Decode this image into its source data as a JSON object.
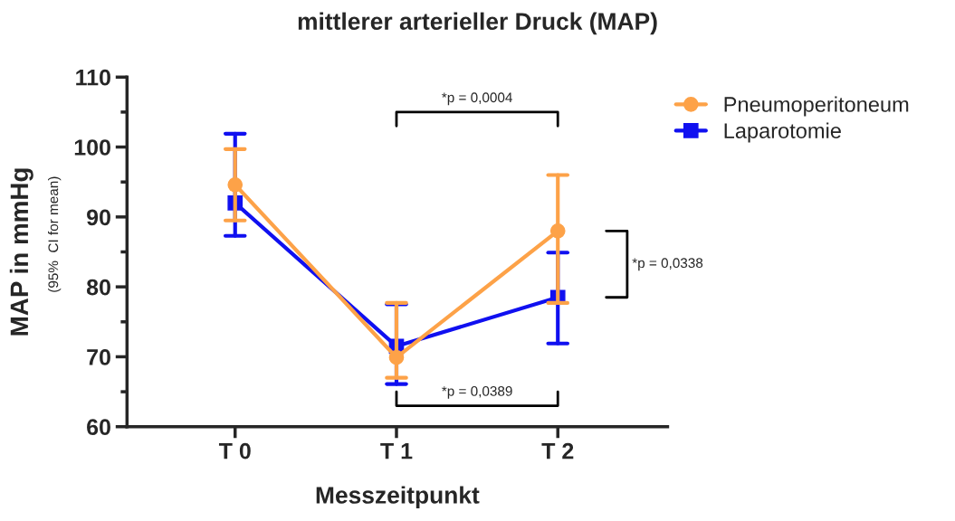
{
  "chart_data": {
    "type": "line",
    "title": "mittlerer arterieller Druck (MAP)",
    "xlabel": "Messzeitpunkt",
    "ylabel": "MAP in mmHg",
    "categories": [
      "T 0",
      "T 1",
      "T 2"
    ],
    "series": [
      {
        "name": "Laparotomie",
        "color": "#1010f0",
        "marker": "square",
        "values": [
          92.0,
          71.5,
          78.5
        ],
        "errors": [
          [
            87.3,
            101.9
          ],
          [
            66.1,
            77.5
          ],
          [
            71.9,
            84.9
          ]
        ]
      },
      {
        "name": "Pneumoperitoneum",
        "color": "#fda248",
        "marker": "circle",
        "values": [
          94.6,
          69.9,
          88.0
        ],
        "errors": [
          [
            89.5,
            99.7
          ],
          [
            67.0,
            77.7
          ],
          [
            77.7,
            96.0
          ]
        ]
      }
    ],
    "ylim": [
      60,
      110
    ],
    "yticks": [
      60,
      70,
      80,
      90,
      100,
      110
    ],
    "grid": false,
    "legend": "top right",
    "annotations": [
      "(95%  CI for mean)",
      "*p = 0,0004",
      "*p = 0,0389",
      "*p = 0,0338"
    ]
  }
}
